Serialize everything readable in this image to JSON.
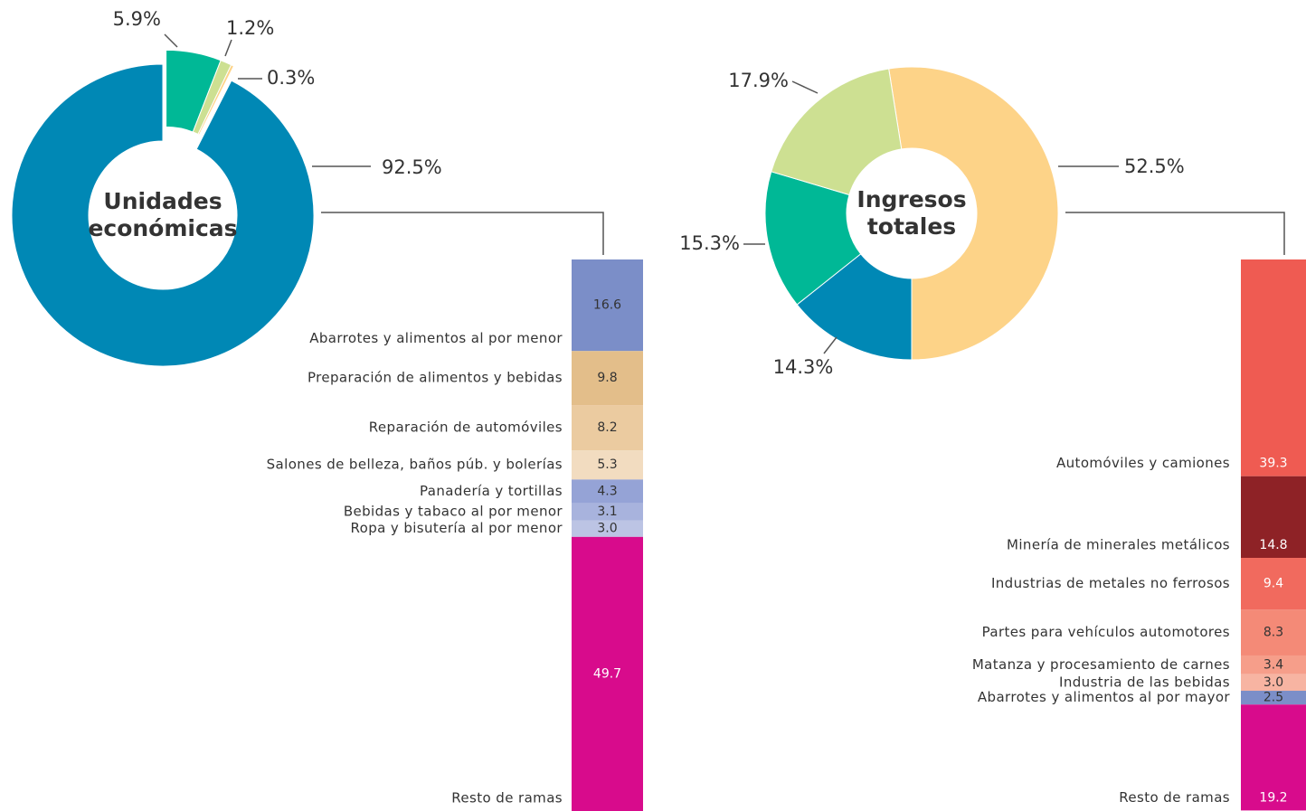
{
  "chart_data": [
    {
      "type": "donut",
      "center_label": "Unidades económicas",
      "values": [
        92.5,
        5.9,
        1.2,
        0.3
      ],
      "value_labels": [
        "92.5%",
        "5.9%",
        "1.2%",
        "0.3%"
      ],
      "colors": [
        "#0088b5",
        "#00b896",
        "#cde092",
        "#fdd388"
      ]
    },
    {
      "type": "stacked_bar",
      "categories": [
        "Abarrotes y alimentos al por menor",
        "Preparación de alimentos y bebidas",
        "Reparación de automóviles",
        "Salones de belleza, baños púb. y bolerías",
        "Panadería y tortillas",
        "Bebidas y tabaco al por menor",
        "Ropa y bisutería al por menor",
        "Resto de ramas"
      ],
      "values": [
        16.6,
        9.8,
        8.2,
        5.3,
        4.3,
        3.1,
        3.0,
        49.7
      ],
      "value_labels": [
        "16.6",
        "9.8",
        "8.2",
        "5.3",
        "4.3",
        "3.1",
        "3.0",
        "49.7"
      ],
      "colors": [
        "#7b8ec8",
        "#e3be8a",
        "#ebcba0",
        "#f2dcc0",
        "#95a3d6",
        "#a8b3dd",
        "#bcc4e4",
        "#d80b8c"
      ]
    },
    {
      "type": "donut",
      "center_label": "Ingresos totales",
      "values": [
        52.5,
        14.3,
        15.3,
        17.9
      ],
      "value_labels": [
        "52.5%",
        "14.3%",
        "15.3%",
        "17.9%"
      ],
      "colors": [
        "#fdd388",
        "#0088b5",
        "#00b896",
        "#cde092"
      ]
    },
    {
      "type": "stacked_bar",
      "categories": [
        "Automóviles y camiones",
        "Minería de minerales metálicos",
        "Industrias de metales no ferrosos",
        "Partes para vehículos automotores",
        "Matanza y procesamiento de carnes",
        "Industria de las bebidas",
        "Abarrotes y alimentos al por mayor",
        "Resto de ramas"
      ],
      "values": [
        39.3,
        14.8,
        9.4,
        8.3,
        3.4,
        3.0,
        2.5,
        19.2
      ],
      "value_labels": [
        "39.3",
        "14.8",
        "9.4",
        "8.3",
        "3.4",
        "3.0",
        "2.5",
        "19.2"
      ],
      "colors": [
        "#ef5b52",
        "#8e2226",
        "#f16a5e",
        "#f48a77",
        "#f69e8a",
        "#f7b4a2",
        "#7b8ec8",
        "#d80b8c"
      ]
    }
  ]
}
